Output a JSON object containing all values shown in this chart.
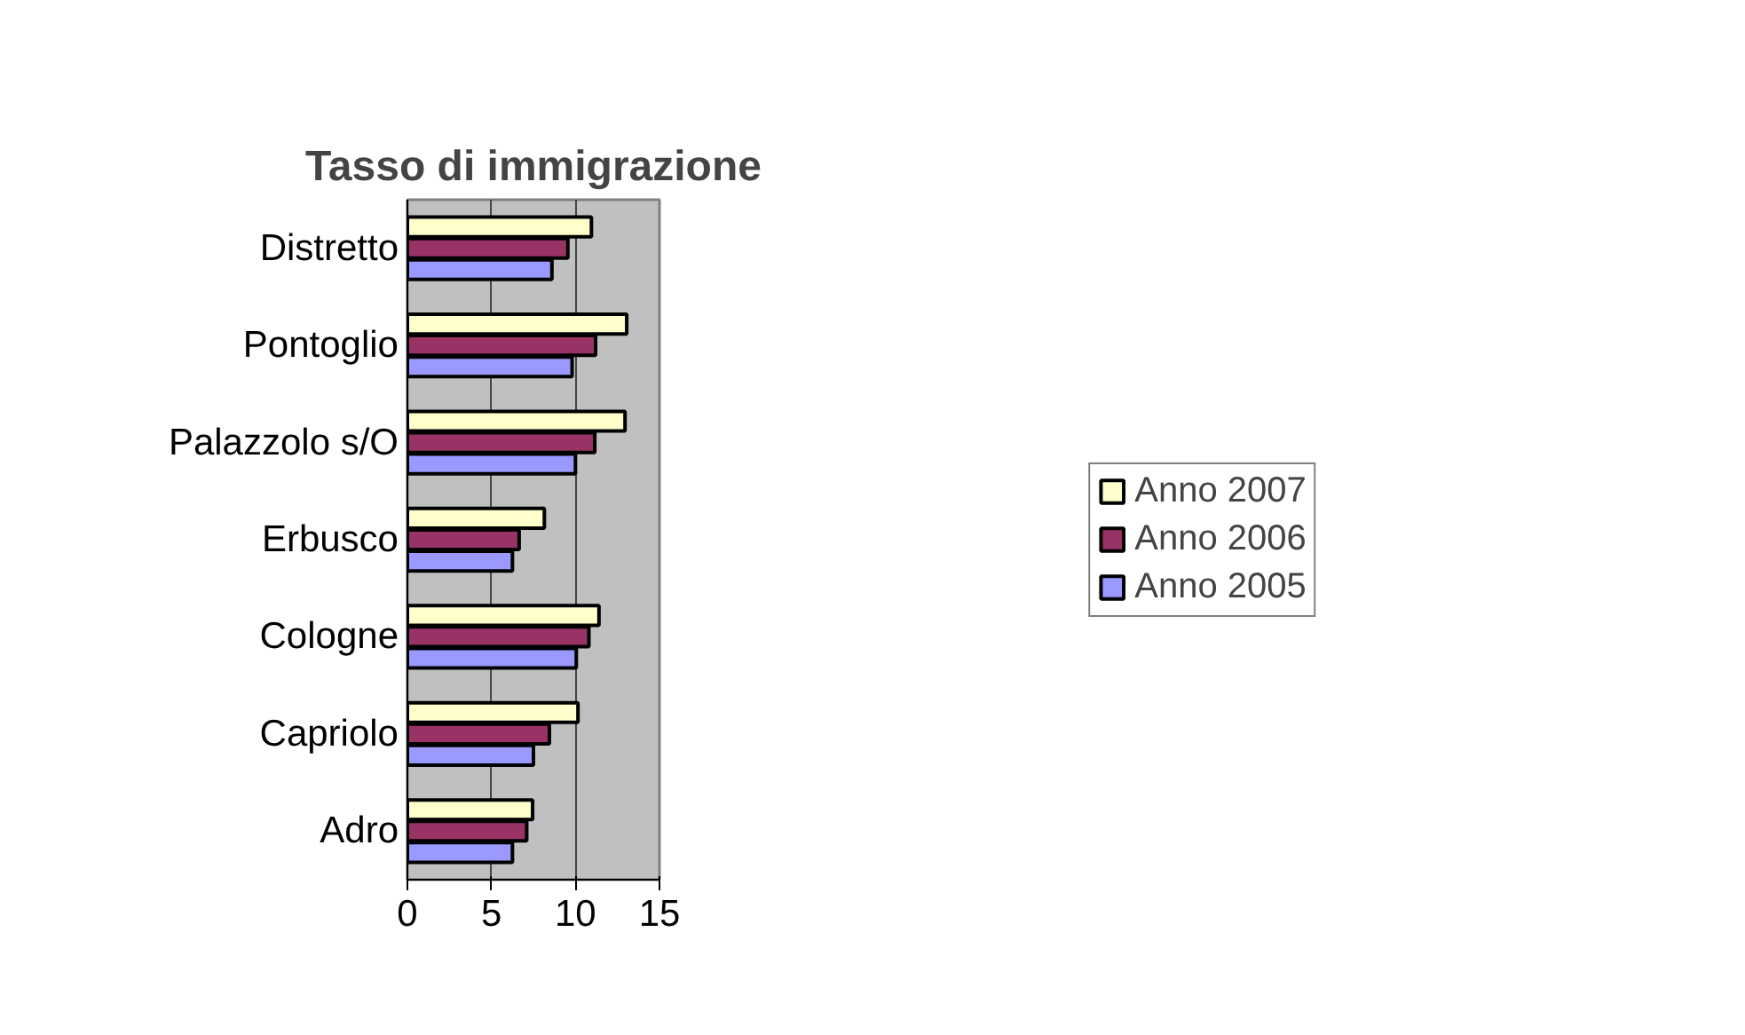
{
  "chart_data": {
    "type": "bar",
    "title": "Tasso di immigrazione",
    "orientation": "horizontal",
    "categories": [
      "Distretto",
      "Pontoglio",
      "Palazzolo s/O",
      "Erbusco",
      "Cologne",
      "Capriolo",
      "Adro"
    ],
    "series": [
      {
        "name": "Anno 2007",
        "color": "#ffffcc",
        "values": [
          10.95,
          13.05,
          12.95,
          8.15,
          11.4,
          10.15,
          7.45
        ]
      },
      {
        "name": "Anno 2006",
        "color": "#993366",
        "values": [
          9.55,
          11.2,
          11.15,
          6.65,
          10.8,
          8.45,
          7.1
        ]
      },
      {
        "name": "Anno 2005",
        "color": "#9999ff",
        "values": [
          8.6,
          9.8,
          10.0,
          6.25,
          10.05,
          7.5,
          6.25
        ]
      }
    ],
    "xlim": [
      0,
      15
    ],
    "xticks": [
      0,
      5,
      10,
      15
    ],
    "grid": "x",
    "legend": "right"
  }
}
